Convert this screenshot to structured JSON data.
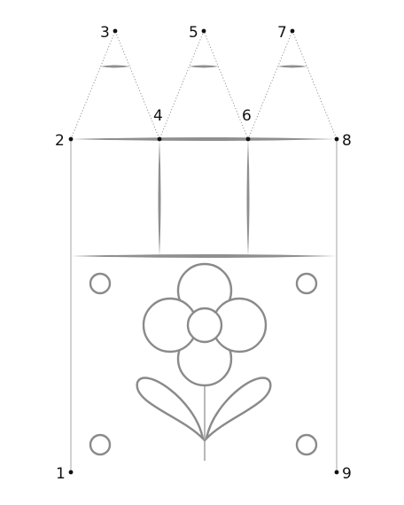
{
  "points": [
    {
      "label": "1"
    },
    {
      "label": "2"
    },
    {
      "label": "3"
    },
    {
      "label": "4"
    },
    {
      "label": "5"
    },
    {
      "label": "6"
    },
    {
      "label": "7"
    },
    {
      "label": "8"
    },
    {
      "label": "9"
    }
  ]
}
